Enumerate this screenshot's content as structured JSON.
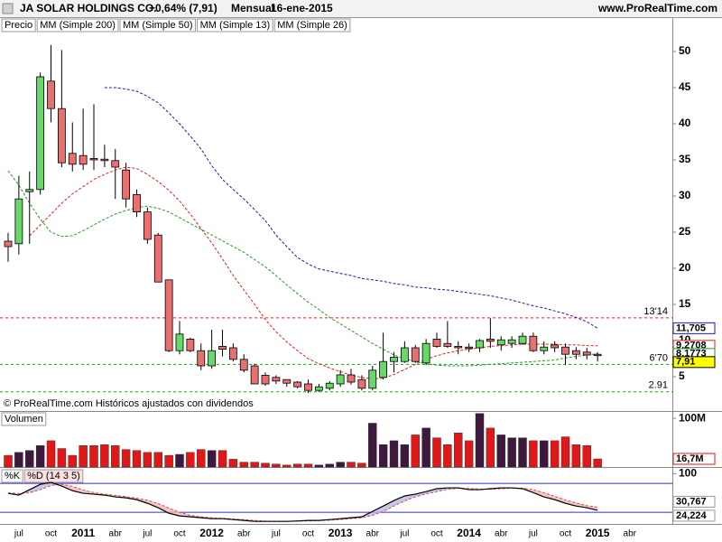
{
  "header": {
    "title": "JA SOLAR HOLDINGS CO.",
    "change": "+0,64% (7,91)",
    "period": "Mensual",
    "date": "16-ene-2015",
    "site": "www.ProRealTime.com"
  },
  "footer": "© ProRealTime.com Históricos ajustados con dividendos",
  "chart_data": [
    {
      "type": "candlestick",
      "legend": [
        "Precio",
        "MM (Simple 200)"
      ],
      "categories": [
        null,
        "jul",
        null,
        null,
        "oct",
        null,
        null,
        "2011",
        null,
        null,
        "abr",
        null,
        null,
        "jul",
        null,
        null,
        "oct",
        null,
        null,
        "2012",
        null,
        null,
        "abr",
        null,
        null,
        "jul",
        null,
        null,
        "oct",
        null,
        null,
        "2013",
        null,
        null,
        "abr",
        null,
        null,
        "jul",
        null,
        null,
        "oct",
        null,
        null,
        "2014",
        null,
        null,
        "abr",
        null,
        null,
        "jul",
        null,
        null,
        "oct",
        null,
        null,
        "2015",
        null,
        null,
        "abr"
      ],
      "open": [
        23.75,
        23.4,
        30.6,
        30.9,
        45.9,
        42.1,
        35.9,
        35.6,
        35.2,
        35.1,
        34.9,
        33.6,
        30.2,
        27.8,
        24.6,
        18.4,
        8.6,
        10.2,
        8.6,
        6.5,
        9.2,
        9.0,
        7.4,
        6.5,
        5.2,
        4.9,
        4.6,
        4.25,
        4.0,
        3.1,
        3.4,
        4.0,
        5.25,
        4.6,
        3.4,
        4.9,
        7.1,
        7.1,
        9.0,
        6.9,
        10.2,
        9.6,
        9.2,
        9.1,
        9.0,
        10.2,
        9.4,
        9.6,
        9.6,
        10.6,
        8.6,
        9.4,
        9.1,
        8.6,
        8.4,
        8.1,
        null,
        null,
        null
      ],
      "high": [
        24.9,
        32.8,
        33.4,
        47.1,
        50.9,
        50.2,
        40.2,
        42.1,
        42.7,
        37.1,
        36.5,
        34.6,
        30.9,
        28.4,
        24.9,
        18.4,
        12.7,
        10.4,
        9.6,
        11.5,
        11.5,
        9.6,
        8.1,
        6.8,
        5.6,
        5.2,
        4.6,
        4.4,
        4.6,
        4.0,
        4.4,
        5.9,
        6.1,
        5.2,
        6.5,
        11.1,
        8.4,
        9.9,
        9.4,
        10.2,
        11.1,
        12.7,
        9.9,
        9.6,
        10.2,
        13.1,
        10.6,
        10.6,
        11.1,
        11.1,
        9.9,
        9.9,
        9.6,
        9.1,
        9.0,
        8.4,
        null,
        null,
        null
      ],
      "low": [
        20.9,
        21.9,
        23.4,
        30.2,
        40.2,
        34.0,
        33.4,
        33.6,
        33.6,
        34.0,
        29.6,
        28.4,
        27.1,
        23.4,
        18.1,
        8.4,
        8.1,
        8.4,
        5.9,
        6.1,
        7.8,
        7.1,
        5.6,
        4.0,
        3.75,
        4.0,
        3.6,
        3.4,
        2.75,
        2.9,
        3.1,
        3.6,
        3.9,
        3.1,
        3.1,
        4.6,
        5.6,
        6.9,
        6.9,
        6.6,
        9.0,
        9.0,
        8.1,
        8.4,
        8.4,
        9.0,
        8.6,
        9.0,
        9.4,
        8.4,
        8.1,
        8.4,
        6.6,
        7.4,
        7.4,
        7.1,
        null,
        null,
        null
      ],
      "close": [
        23.0,
        29.6,
        30.9,
        46.5,
        42.1,
        34.6,
        34.4,
        34.4,
        35.0,
        34.9,
        34.0,
        29.6,
        27.8,
        24.0,
        18.1,
        8.6,
        10.9,
        8.6,
        6.5,
        8.6,
        8.8,
        7.4,
        5.9,
        4.0,
        4.0,
        4.4,
        4.1,
        3.6,
        3.1,
        3.6,
        4.1,
        5.25,
        4.25,
        3.4,
        5.9,
        7.1,
        7.7,
        9.0,
        7.1,
        9.6,
        9.2,
        9.2,
        9.0,
        8.9,
        10.0,
        9.9,
        10.1,
        10.1,
        10.6,
        8.6,
        9.1,
        9.0,
        8.1,
        8.1,
        8.0,
        7.91,
        null,
        null,
        null
      ],
      "close_label": "7,91",
      "up_color": "#66d966",
      "down_color": "#e87070",
      "series": [
        {
          "name": "MM (Simple 50)",
          "color": "#1a1ab0",
          "last_label": "11,705",
          "values": [
            null,
            null,
            null,
            null,
            null,
            null,
            null,
            null,
            null,
            45.0,
            45.0,
            44.8,
            44.5,
            43.8,
            42.9,
            41.5,
            40.0,
            38.3,
            36.5,
            34.2,
            32.3,
            30.9,
            29.6,
            28.1,
            26.6,
            24.6,
            23.0,
            21.5,
            20.6,
            19.9,
            19.6,
            19.3,
            19.0,
            18.6,
            18.4,
            18.2,
            17.9,
            17.7,
            17.4,
            17.3,
            17.1,
            17.0,
            16.8,
            16.6,
            16.4,
            16.2,
            15.9,
            15.6,
            15.2,
            14.8,
            14.5,
            14.1,
            13.7,
            13.2,
            12.6,
            11.705,
            null,
            null,
            null
          ]
        },
        {
          "name": "MM (Simple 13)",
          "color": "#e02020",
          "last_label": "9,2708",
          "values": [
            null,
            null,
            24.5,
            26.0,
            27.5,
            29.0,
            30.3,
            31.3,
            32.3,
            33.0,
            33.6,
            34.0,
            33.8,
            33.0,
            32.0,
            30.8,
            29.3,
            27.5,
            25.5,
            23.5,
            21.3,
            19.0,
            17.0,
            15.0,
            12.9,
            11.2,
            9.8,
            8.6,
            7.5,
            6.8,
            6.2,
            5.7,
            5.2,
            4.9,
            4.7,
            4.8,
            5.3,
            6.0,
            6.7,
            7.4,
            7.9,
            8.3,
            8.6,
            8.8,
            9.0,
            9.2,
            9.3,
            9.4,
            9.5,
            9.5,
            9.5,
            9.5,
            9.4,
            9.4,
            9.3,
            9.2708,
            null,
            null,
            null
          ]
        },
        {
          "name": "MM (Simple 26)",
          "color": "#209a20",
          "last_label": "8,1773",
          "values": [
            33.5,
            31.5,
            29.0,
            26.8,
            25.0,
            24.4,
            24.5,
            25.2,
            26.0,
            26.8,
            27.5,
            28.0,
            28.4,
            28.6,
            28.3,
            27.8,
            27.0,
            26.2,
            25.4,
            24.6,
            23.8,
            23.0,
            22.2,
            21.2,
            20.2,
            19.0,
            17.7,
            16.5,
            15.3,
            14.3,
            13.2,
            12.3,
            11.4,
            10.5,
            9.6,
            8.8,
            8.0,
            7.5,
            7.1,
            6.8,
            6.6,
            6.5,
            6.5,
            6.5,
            6.6,
            6.7,
            6.8,
            6.9,
            7.0,
            7.1,
            7.2,
            7.3,
            7.6,
            7.8,
            8.0,
            8.1773,
            null,
            null,
            null
          ]
        }
      ],
      "levels": [
        {
          "value": 13.14,
          "label": "13'14",
          "color": "#e02020"
        },
        {
          "value": 6.7,
          "label": "6'70",
          "color": "#209a20"
        },
        {
          "value": 2.91,
          "label": "2.91",
          "color": "#209a20"
        }
      ],
      "ylim": [
        0.25,
        52.625
      ],
      "yticks": [
        5,
        10,
        15,
        20,
        25,
        30,
        35,
        40,
        45,
        50
      ]
    },
    {
      "type": "bar",
      "title": "Volumen",
      "values": [
        24,
        30,
        34,
        44,
        54,
        38,
        24,
        44,
        44,
        46,
        44,
        36,
        34,
        30,
        30,
        24,
        26,
        30,
        36,
        34,
        34,
        16,
        10,
        10,
        8,
        6,
        4,
        6,
        6,
        4,
        6,
        10,
        10,
        8,
        90,
        46,
        54,
        46,
        66,
        80,
        60,
        46,
        70,
        54,
        110,
        80,
        66,
        60,
        60,
        54,
        54,
        54,
        62,
        46,
        44,
        16.7,
        null,
        null,
        null
      ],
      "last_label": "16,7M",
      "up_color": "#3d1a3d",
      "down_color": "#e01818",
      "ylim": [
        0,
        115
      ],
      "yticks": [
        {
          "value": 100,
          "label": "100M"
        }
      ]
    },
    {
      "type": "line",
      "series": [
        {
          "name": "%K",
          "color": "#000000",
          "last_label": "24,224",
          "values": [
            59.5,
            55.7,
            67,
            78,
            82,
            74.5,
            65,
            59.5,
            57.6,
            55.7,
            52,
            50,
            46.3,
            38.8,
            29.5,
            18.2,
            12.6,
            10.7,
            8.8,
            6.9,
            6.9,
            5,
            3.2,
            1.3,
            1.3,
            1.3,
            1.3,
            2.2,
            3.2,
            3.2,
            5,
            6.9,
            8.8,
            10.7,
            22,
            33,
            44.5,
            54,
            57.6,
            63,
            69,
            70.7,
            70.7,
            67,
            67,
            69,
            70.7,
            70.7,
            69,
            61,
            52,
            46.3,
            38.8,
            33,
            29.5,
            24.224,
            null,
            null,
            null
          ]
        },
        {
          "name": "%D (14 3 5)",
          "color": "#e04848",
          "last_label": "30,767",
          "values": [
            60,
            59,
            60.7,
            66.9,
            75.7,
            78.2,
            73.8,
            66.3,
            60.7,
            57.6,
            55.1,
            52.6,
            49.4,
            45,
            38.2,
            28.8,
            20.1,
            13.8,
            10.7,
            8.8,
            7.5,
            6.3,
            5,
            3.2,
            1.9,
            1.3,
            1.3,
            1.6,
            2.2,
            2.9,
            3.8,
            5,
            6.9,
            8.8,
            13.8,
            21.9,
            33.2,
            43.8,
            52,
            58.2,
            63.2,
            67.6,
            70,
            69.5,
            68.2,
            67.7,
            68.9,
            70.1,
            70.1,
            66.9,
            60.7,
            53.1,
            45.7,
            39.4,
            33.8,
            30.767,
            null,
            null,
            null
          ]
        }
      ],
      "levels": [
        80,
        20
      ],
      "level_color": "#3030c0",
      "ylim": [
        -4,
        112
      ],
      "yticks": [
        100
      ]
    }
  ]
}
